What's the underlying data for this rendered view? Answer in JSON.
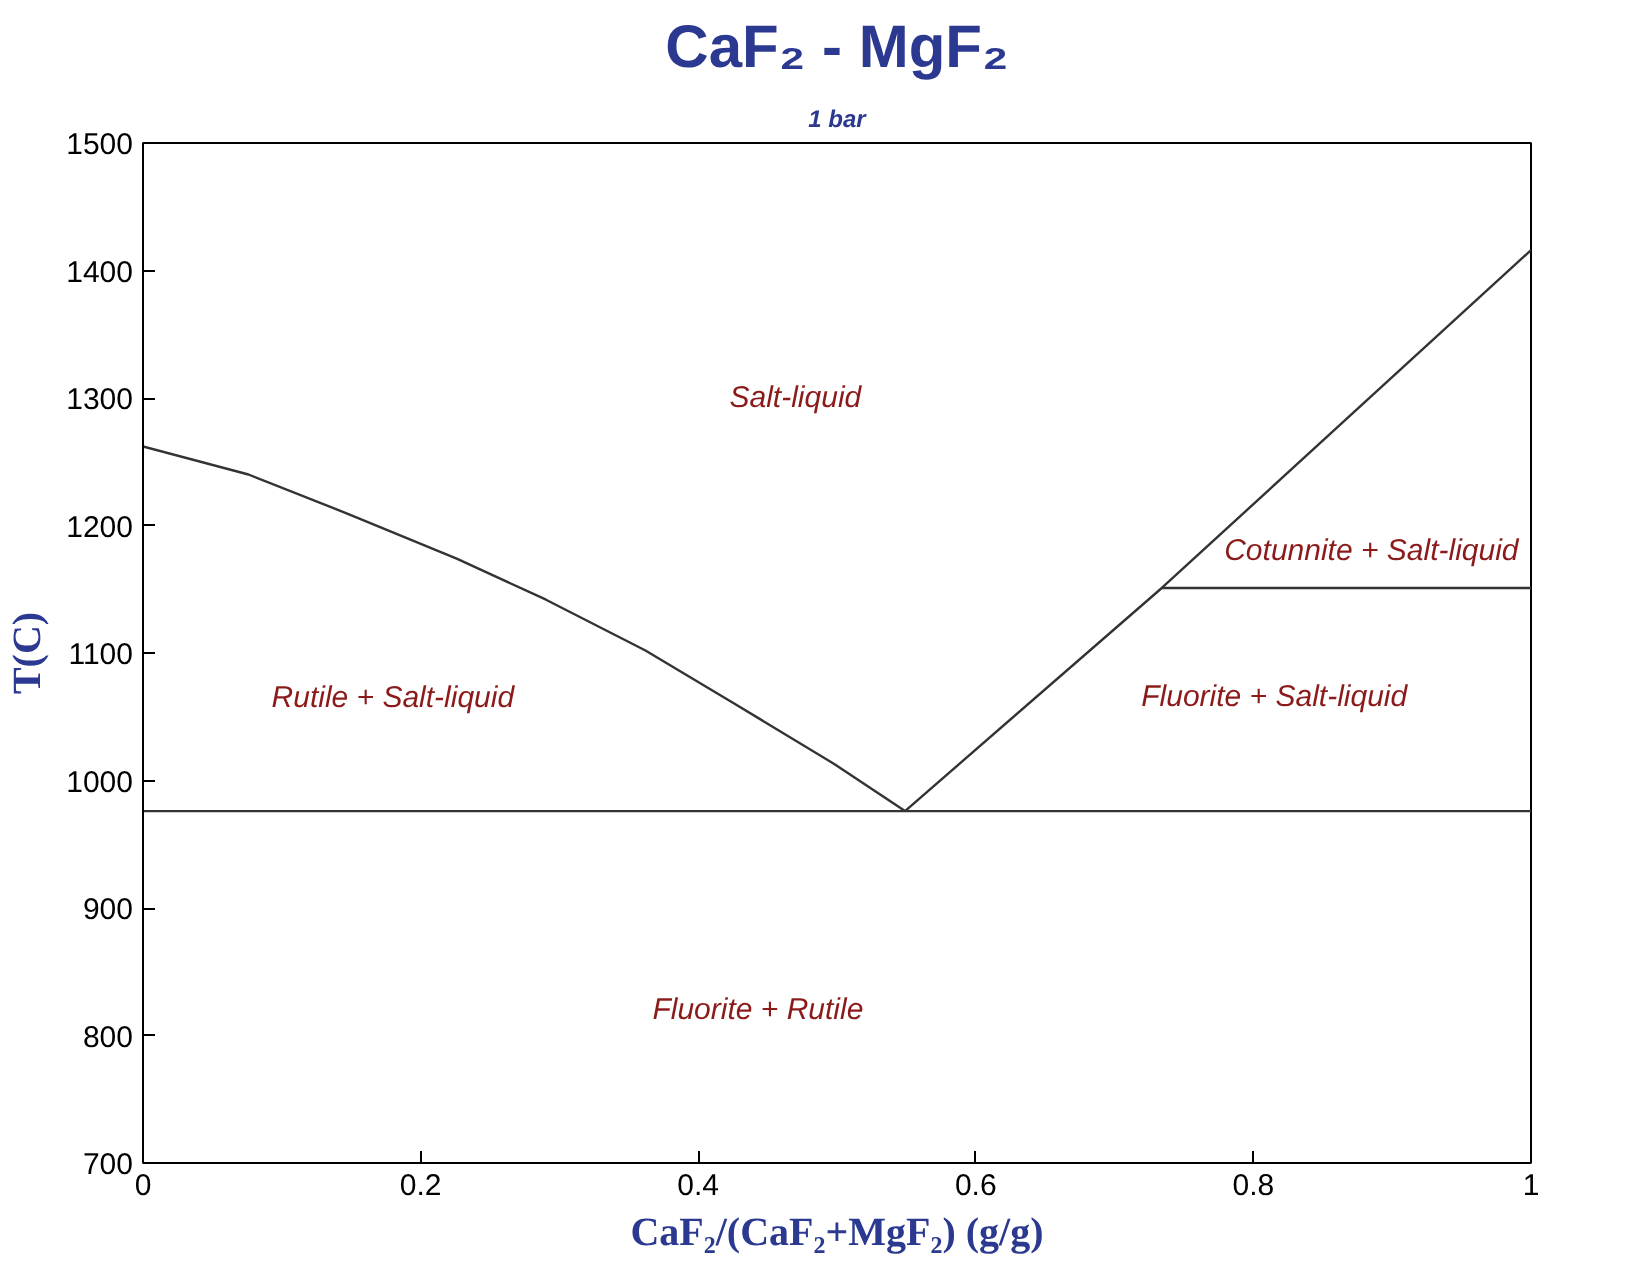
{
  "chart_data": {
    "type": "line",
    "title": "CaF₂ - MgF₂",
    "subtitle": "1 bar",
    "xlabel": "CaF₂/(CaF₂+MgF₂) (g/g)",
    "ylabel": "T(C)",
    "xlim": [
      0,
      1
    ],
    "ylim": [
      700,
      1500
    ],
    "xticks": [
      0,
      0.2,
      0.4,
      0.6,
      0.8,
      1
    ],
    "yticks": [
      700,
      800,
      900,
      1000,
      1100,
      1200,
      1300,
      1400,
      1500
    ],
    "series": [
      {
        "color": "#333333",
        "x": [
          0,
          0.076,
          0.148,
          0.226,
          0.29,
          0.362,
          0.425,
          0.498,
          0.549
        ],
        "values": [
          1262,
          1240,
          1209,
          1174,
          1142,
          1102,
          1061,
          1013,
          976
        ]
      },
      {
        "color": "#333333",
        "x": [
          0.549,
          0.734,
          1
        ],
        "values": [
          976,
          1151,
          1416
        ]
      },
      {
        "color": "#333333",
        "x": [
          0,
          1
        ],
        "values": [
          976,
          976
        ]
      },
      {
        "color": "#333333",
        "x": [
          0.734,
          1
        ],
        "values": [
          1151,
          1151
        ]
      }
    ],
    "annotations": [
      "Salt-liquid",
      "Rutile + Salt-liquid",
      "Cotunnite + Salt-liquid",
      "Fluorite + Salt-liquid",
      "Fluorite + Rutile"
    ],
    "grid": false,
    "marker": "none",
    "line_style": "solid"
  }
}
